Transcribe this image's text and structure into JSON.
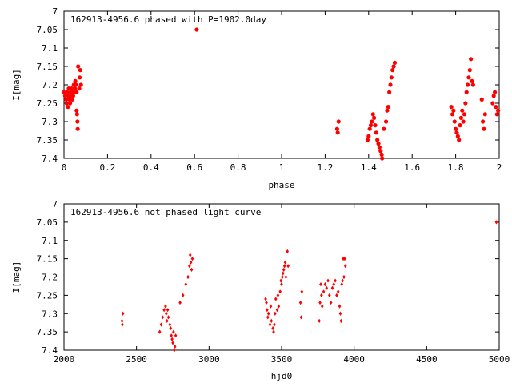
{
  "chart_data": [
    {
      "type": "scatter",
      "title": "162913-4956.6 phased with P=1902.0day",
      "xlabel": "phase",
      "ylabel": "I[mag]",
      "xlim": [
        0,
        2
      ],
      "ylim": [
        7,
        7.4
      ],
      "y_inverted": true,
      "grid": false,
      "x_ticks": [
        "0",
        "0.2",
        "0.4",
        "0.6",
        "0.8",
        "1",
        "1.2",
        "1.4",
        "1.6",
        "1.8",
        "2"
      ],
      "y_ticks": [
        "7",
        "7.05",
        "7.1",
        "7.15",
        "7.2",
        "7.25",
        "7.3",
        "7.35",
        "7.4"
      ],
      "marker_color": "#ff0000",
      "points": [
        [
          0.0,
          7.22
        ],
        [
          0.005,
          7.23
        ],
        [
          0.01,
          7.24
        ],
        [
          0.012,
          7.25
        ],
        [
          0.015,
          7.22
        ],
        [
          0.018,
          7.26
        ],
        [
          0.02,
          7.23
        ],
        [
          0.022,
          7.21
        ],
        [
          0.025,
          7.24
        ],
        [
          0.028,
          7.25
        ],
        [
          0.03,
          7.22
        ],
        [
          0.032,
          7.23
        ],
        [
          0.035,
          7.21
        ],
        [
          0.038,
          7.24
        ],
        [
          0.04,
          7.22
        ],
        [
          0.042,
          7.23
        ],
        [
          0.045,
          7.2
        ],
        [
          0.048,
          7.22
        ],
        [
          0.05,
          7.21
        ],
        [
          0.052,
          7.19
        ],
        [
          0.055,
          7.2
        ],
        [
          0.058,
          7.22
        ],
        [
          0.06,
          7.28
        ],
        [
          0.062,
          7.3
        ],
        [
          0.063,
          7.32
        ],
        [
          0.058,
          7.27
        ],
        [
          0.065,
          7.15
        ],
        [
          0.07,
          7.21
        ],
        [
          0.072,
          7.18
        ],
        [
          0.075,
          7.16
        ],
        [
          0.078,
          7.2
        ],
        [
          0.61,
          7.05
        ],
        [
          1.255,
          7.32
        ],
        [
          1.258,
          7.33
        ],
        [
          1.262,
          7.3
        ],
        [
          1.395,
          7.35
        ],
        [
          1.4,
          7.34
        ],
        [
          1.405,
          7.32
        ],
        [
          1.41,
          7.31
        ],
        [
          1.415,
          7.3
        ],
        [
          1.42,
          7.28
        ],
        [
          1.425,
          7.29
        ],
        [
          1.43,
          7.31
        ],
        [
          1.435,
          7.33
        ],
        [
          1.44,
          7.35
        ],
        [
          1.445,
          7.36
        ],
        [
          1.45,
          7.37
        ],
        [
          1.455,
          7.38
        ],
        [
          1.46,
          7.39
        ],
        [
          1.462,
          7.4
        ],
        [
          1.47,
          7.32
        ],
        [
          1.48,
          7.3
        ],
        [
          1.485,
          7.27
        ],
        [
          1.49,
          7.26
        ],
        [
          1.495,
          7.22
        ],
        [
          1.5,
          7.2
        ],
        [
          1.505,
          7.18
        ],
        [
          1.51,
          7.16
        ],
        [
          1.515,
          7.15
        ],
        [
          1.52,
          7.14
        ],
        [
          1.78,
          7.26
        ],
        [
          1.785,
          7.28
        ],
        [
          1.79,
          7.27
        ],
        [
          1.795,
          7.3
        ],
        [
          1.8,
          7.32
        ],
        [
          1.805,
          7.33
        ],
        [
          1.81,
          7.34
        ],
        [
          1.815,
          7.35
        ],
        [
          1.82,
          7.31
        ],
        [
          1.825,
          7.29
        ],
        [
          1.83,
          7.27
        ],
        [
          1.835,
          7.3
        ],
        [
          1.84,
          7.28
        ],
        [
          1.845,
          7.25
        ],
        [
          1.85,
          7.22
        ],
        [
          1.855,
          7.2
        ],
        [
          1.86,
          7.18
        ],
        [
          1.865,
          7.16
        ],
        [
          1.87,
          7.13
        ],
        [
          1.875,
          7.19
        ],
        [
          1.88,
          7.2
        ],
        [
          1.92,
          7.24
        ],
        [
          1.925,
          7.3
        ],
        [
          1.93,
          7.32
        ],
        [
          1.935,
          7.28
        ],
        [
          1.97,
          7.25
        ],
        [
          1.975,
          7.23
        ],
        [
          1.98,
          7.22
        ],
        [
          1.985,
          7.26
        ],
        [
          1.99,
          7.28
        ],
        [
          1.995,
          7.27
        ]
      ]
    },
    {
      "type": "scatter",
      "title": "162913-4956.6 not phased light curve",
      "xlabel": "hjd0",
      "ylabel": "I[mag]",
      "xlim": [
        2000,
        5000
      ],
      "ylim": [
        7,
        7.4
      ],
      "y_inverted": true,
      "grid": false,
      "x_ticks": [
        "2000",
        "2500",
        "3000",
        "3500",
        "4000",
        "4500",
        "5000"
      ],
      "y_ticks": [
        "7",
        "7.05",
        "7.1",
        "7.15",
        "7.2",
        "7.25",
        "7.3",
        "7.35",
        "7.4"
      ],
      "marker_color": "#ff0000",
      "points": [
        [
          2400,
          7.32
        ],
        [
          2402,
          7.33
        ],
        [
          2406,
          7.3
        ],
        [
          2660,
          7.35
        ],
        [
          2670,
          7.33
        ],
        [
          2680,
          7.31
        ],
        [
          2690,
          7.29
        ],
        [
          2700,
          7.28
        ],
        [
          2705,
          7.3
        ],
        [
          2710,
          7.32
        ],
        [
          2715,
          7.29
        ],
        [
          2720,
          7.31
        ],
        [
          2730,
          7.33
        ],
        [
          2735,
          7.34
        ],
        [
          2740,
          7.36
        ],
        [
          2745,
          7.37
        ],
        [
          2750,
          7.38
        ],
        [
          2755,
          7.35
        ],
        [
          2760,
          7.4
        ],
        [
          2765,
          7.39
        ],
        [
          2770,
          7.36
        ],
        [
          2800,
          7.27
        ],
        [
          2820,
          7.25
        ],
        [
          2840,
          7.22
        ],
        [
          2855,
          7.2
        ],
        [
          2865,
          7.17
        ],
        [
          2870,
          7.14
        ],
        [
          2875,
          7.16
        ],
        [
          2880,
          7.18
        ],
        [
          2885,
          7.15
        ],
        [
          3390,
          7.26
        ],
        [
          3395,
          7.27
        ],
        [
          3400,
          7.29
        ],
        [
          3405,
          7.31
        ],
        [
          3410,
          7.3
        ],
        [
          3420,
          7.33
        ],
        [
          3425,
          7.28
        ],
        [
          3430,
          7.32
        ],
        [
          3440,
          7.34
        ],
        [
          3445,
          7.35
        ],
        [
          3450,
          7.33
        ],
        [
          3455,
          7.3
        ],
        [
          3460,
          7.26
        ],
        [
          3470,
          7.29
        ],
        [
          3475,
          7.25
        ],
        [
          3480,
          7.28
        ],
        [
          3490,
          7.24
        ],
        [
          3495,
          7.21
        ],
        [
          3500,
          7.22
        ],
        [
          3505,
          7.2
        ],
        [
          3510,
          7.19
        ],
        [
          3515,
          7.18
        ],
        [
          3520,
          7.17
        ],
        [
          3525,
          7.16
        ],
        [
          3530,
          7.2
        ],
        [
          3540,
          7.13
        ],
        [
          3545,
          7.17
        ],
        [
          3630,
          7.27
        ],
        [
          3635,
          7.31
        ],
        [
          3640,
          7.24
        ],
        [
          3760,
          7.32
        ],
        [
          3765,
          7.27
        ],
        [
          3770,
          7.22
        ],
        [
          3775,
          7.25
        ],
        [
          3780,
          7.28
        ],
        [
          3790,
          7.24
        ],
        [
          3800,
          7.22
        ],
        [
          3810,
          7.23
        ],
        [
          3820,
          7.21
        ],
        [
          3830,
          7.25
        ],
        [
          3840,
          7.27
        ],
        [
          3850,
          7.23
        ],
        [
          3860,
          7.22
        ],
        [
          3870,
          7.21
        ],
        [
          3880,
          7.25
        ],
        [
          3890,
          7.24
        ],
        [
          3900,
          7.28
        ],
        [
          3905,
          7.3
        ],
        [
          3910,
          7.32
        ],
        [
          3915,
          7.22
        ],
        [
          3920,
          7.21
        ],
        [
          3925,
          7.15
        ],
        [
          3930,
          7.2
        ],
        [
          3935,
          7.15
        ],
        [
          3940,
          7.17
        ],
        [
          4980,
          7.05
        ]
      ]
    }
  ]
}
